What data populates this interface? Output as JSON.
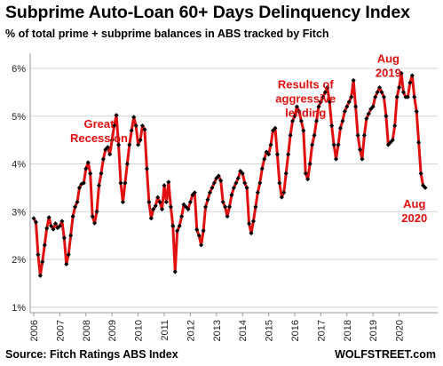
{
  "chart_data": {
    "type": "line",
    "title": "Subprime Auto-Loan  60+ Days Delinquency Index",
    "subtitle": "% of total prime + subprime balances in ABS tracked by Fitch",
    "source": "Source: Fitch Ratings ABS Index",
    "credit": "WOLFSTREET.com",
    "x_start": "2006-01",
    "x_step": "month",
    "x_tick_labels": [
      "2006",
      "2007",
      "2008",
      "2009",
      "2010",
      "2011",
      "2012",
      "2013",
      "2014",
      "2015",
      "2016",
      "2017",
      "2018",
      "2019",
      "2020"
    ],
    "y_tick_labels": [
      "1%",
      "2%",
      "3%",
      "4%",
      "5%",
      "6%"
    ],
    "ylim": [
      1,
      6.4
    ],
    "grid": "horizontal",
    "series": [
      {
        "color": "#e01010",
        "marker_color": "#000000",
        "values": [
          2.86,
          2.78,
          2.1,
          1.66,
          1.95,
          2.3,
          2.65,
          2.88,
          2.7,
          2.63,
          2.75,
          2.66,
          2.7,
          2.8,
          2.45,
          1.9,
          2.1,
          2.5,
          2.9,
          3.1,
          3.2,
          3.5,
          3.58,
          3.6,
          3.9,
          4.03,
          3.8,
          2.9,
          2.76,
          3.0,
          3.55,
          3.8,
          4.1,
          4.3,
          4.35,
          4.2,
          4.5,
          4.8,
          5.02,
          4.4,
          3.6,
          3.2,
          3.6,
          4.0,
          4.4,
          4.7,
          4.98,
          4.8,
          4.4,
          4.5,
          4.8,
          4.72,
          3.9,
          3.2,
          2.86,
          3.05,
          3.12,
          3.3,
          3.2,
          3.05,
          3.55,
          3.2,
          3.62,
          3.1,
          2.7,
          1.74,
          2.6,
          2.7,
          2.9,
          3.15,
          3.1,
          3.05,
          3.2,
          3.35,
          3.4,
          2.62,
          2.5,
          2.3,
          2.6,
          3.1,
          3.25,
          3.4,
          3.5,
          3.6,
          3.7,
          3.75,
          3.65,
          3.2,
          3.1,
          2.9,
          3.1,
          3.35,
          3.5,
          3.6,
          3.7,
          3.85,
          3.8,
          3.6,
          3.5,
          2.75,
          2.55,
          2.8,
          3.1,
          3.4,
          3.6,
          3.9,
          4.1,
          4.25,
          4.2,
          4.4,
          4.7,
          4.75,
          4.2,
          3.6,
          3.3,
          3.4,
          3.8,
          4.2,
          4.6,
          4.9,
          5.0,
          5.2,
          5.1,
          4.9,
          4.7,
          3.8,
          3.68,
          4.0,
          4.4,
          4.6,
          4.9,
          5.2,
          5.3,
          5.4,
          5.5,
          5.6,
          5.3,
          4.8,
          4.4,
          4.1,
          4.4,
          4.75,
          4.9,
          5.1,
          5.2,
          5.3,
          5.4,
          5.75,
          5.2,
          4.6,
          4.3,
          4.1,
          4.6,
          4.95,
          5.05,
          5.15,
          5.2,
          5.4,
          5.5,
          5.6,
          5.5,
          5.4,
          5.0,
          4.4,
          4.45,
          4.5,
          4.8,
          5.4,
          5.6,
          5.9,
          5.5,
          5.4,
          5.4,
          5.7,
          5.85,
          5.4,
          5.1,
          4.45,
          3.8,
          3.55,
          3.5
        ]
      }
    ],
    "annotations": [
      {
        "lines": [
          "Great",
          "Recession"
        ],
        "x": "2008-07",
        "y": 4.75
      },
      {
        "lines": [
          "Results of",
          "aggressive",
          "lending"
        ],
        "x": "2016-06",
        "y": 5.58
      },
      {
        "lines": [
          "Aug",
          "2019"
        ],
        "x": "2019-08",
        "y": 6.12
      },
      {
        "lines": [
          "Aug",
          "2020"
        ],
        "x": "2020-08",
        "y": 3.08
      }
    ]
  }
}
